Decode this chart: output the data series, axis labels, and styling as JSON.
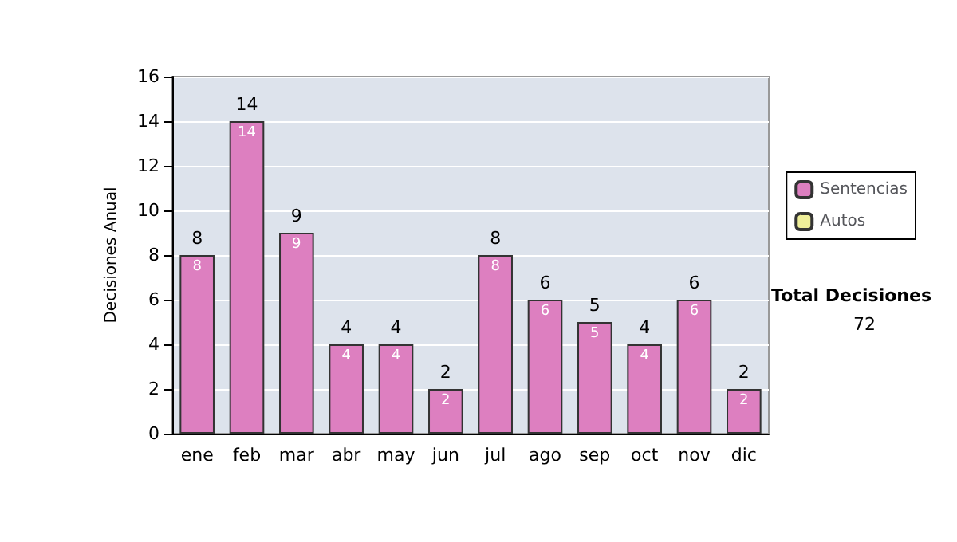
{
  "chart_data": {
    "type": "bar",
    "ylabel": "Decisiones Anual",
    "stacked": true,
    "categories": [
      "ene",
      "feb",
      "mar",
      "abr",
      "may",
      "jun",
      "jul",
      "ago",
      "sep",
      "oct",
      "nov",
      "dic"
    ],
    "series": [
      {
        "name": "Sentencias",
        "color": "#dd7fc0",
        "values": [
          8,
          14,
          9,
          4,
          4,
          2,
          8,
          6,
          5,
          4,
          6,
          2
        ],
        "value_labels": [
          "8",
          "14",
          "9",
          "4",
          "4",
          "2",
          "8",
          "6",
          "5",
          "4",
          "6",
          "2"
        ]
      },
      {
        "name": "Autos",
        "color": "#eeee99",
        "values": [
          0,
          0,
          0,
          0,
          0,
          0,
          0,
          0,
          0,
          0,
          0,
          0
        ]
      }
    ],
    "totals": [
      "8",
      "14",
      "9",
      "4",
      "4",
      "2",
      "8",
      "6",
      "5",
      "4",
      "6",
      "2"
    ],
    "ylim": [
      0,
      16
    ],
    "yticks": [
      0,
      2,
      4,
      6,
      8,
      10,
      12,
      14,
      16
    ],
    "grid": "y",
    "legend": "right",
    "annotations": [
      "Total Decisiones",
      "72"
    ]
  }
}
